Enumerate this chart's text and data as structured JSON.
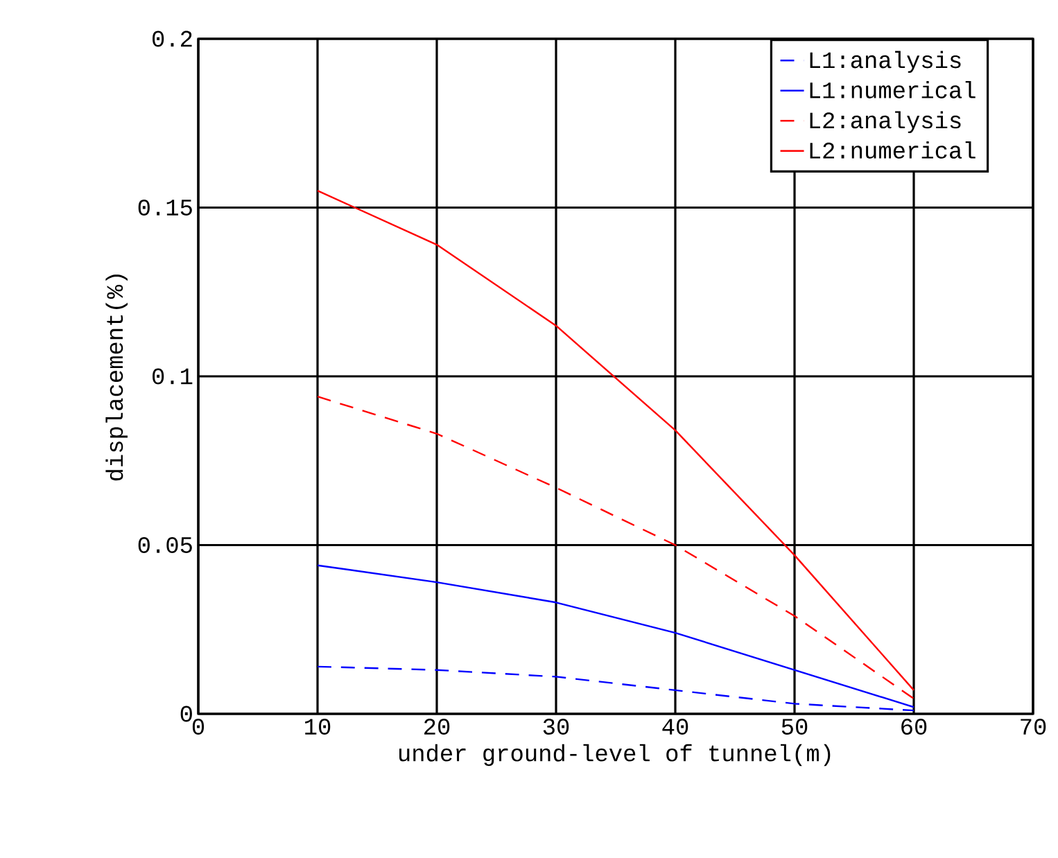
{
  "chart_data": {
    "type": "line",
    "xlabel": "under ground-level of tunnel(m)",
    "ylabel": "displacement(%)",
    "x": [
      10,
      20,
      30,
      40,
      50,
      60
    ],
    "xlim": [
      0,
      70
    ],
    "xticks": [
      0,
      10,
      20,
      30,
      40,
      50,
      60,
      70
    ],
    "ylim": [
      0,
      0.2
    ],
    "yticks": [
      0,
      0.05,
      0.1,
      0.15,
      0.2
    ],
    "grid": true,
    "legend": "top right",
    "marker": "none",
    "series": [
      {
        "name": "L1:analysis",
        "color": "#0000ff",
        "line_style": "dashed",
        "values": [
          0.014,
          0.013,
          0.011,
          0.007,
          0.003,
          0.001
        ]
      },
      {
        "name": "L1:numerical",
        "color": "#0000ff",
        "line_style": "solid",
        "values": [
          0.044,
          0.039,
          0.033,
          0.024,
          0.013,
          0.002
        ]
      },
      {
        "name": "L2:analysis",
        "color": "#ff0000",
        "line_style": "dashed",
        "values": [
          0.094,
          0.083,
          0.067,
          0.05,
          0.029,
          0.0045
        ]
      },
      {
        "name": "L2:numerical",
        "color": "#ff0000",
        "line_style": "solid",
        "values": [
          0.155,
          0.139,
          0.115,
          0.084,
          0.047,
          0.007
        ]
      }
    ]
  }
}
